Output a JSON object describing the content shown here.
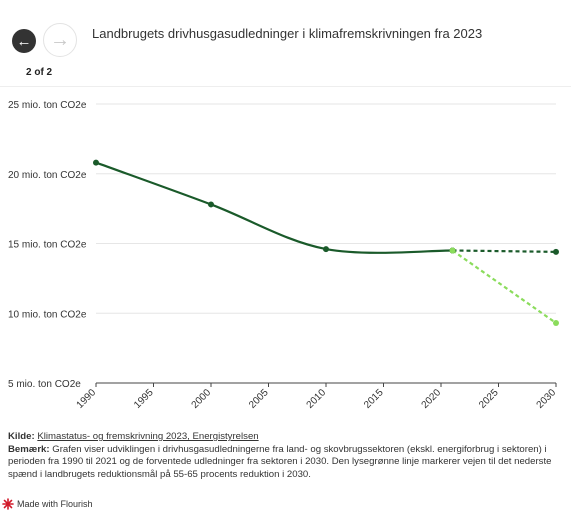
{
  "header": {
    "title": "Landbrugets drivhusgasudledninger i klimafremskrivningen fra 2023",
    "back_icon": "arrow-left-icon",
    "forward_icon": "arrow-right-icon",
    "step_counter": "2 of 2"
  },
  "chart_data": {
    "type": "line",
    "title": "",
    "xlabel": "",
    "ylabel": "",
    "xlim": [
      1990,
      2030
    ],
    "ylim": [
      5,
      25
    ],
    "x_ticks": [
      "1990",
      "1995",
      "2000",
      "2005",
      "2010",
      "2015",
      "2020",
      "2025",
      "2030"
    ],
    "y_ticks": [
      "25 mio. ton CO2e",
      "20 mio. ton CO2e",
      "15 mio. ton CO2e",
      "10 mio. ton CO2e",
      "5 mio. ton CO2e"
    ],
    "grid": "horizontal",
    "legend": "none",
    "series": [
      {
        "style": "solid",
        "color": "#1a5a2a",
        "x": [
          1990,
          2000,
          2010,
          2021
        ],
        "y": [
          20.8,
          17.8,
          14.6,
          14.5
        ]
      },
      {
        "style": "dashed",
        "color": "#1a5a2a",
        "x": [
          2021,
          2030
        ],
        "y": [
          14.5,
          14.4
        ]
      },
      {
        "style": "dashed",
        "color": "#8bdc5c",
        "x": [
          2021,
          2030
        ],
        "y": [
          14.5,
          9.3
        ]
      }
    ]
  },
  "footer": {
    "source_label": "Kilde:",
    "source_link": "Klimastatus- og fremskrivning 2023, Energistyrelsen",
    "note_label": "Bemærk:",
    "note_text": "Grafen viser udviklingen i drivhusgasudledningerne fra land- og skovbrugssektoren (ekskl. energiforbrug i sektoren) i perioden fra 1990 til 2021 og de forventede udledninger fra sektoren i 2030. Den lysegrønne linje markerer vejen til det nederste spænd i landbrugets reduktionsmål på 55-65 procents reduktion i 2030.",
    "made_with": "Made with Flourish",
    "made_with_icon": "flourish-logo-icon",
    "accent_color": "#d11a2a"
  }
}
